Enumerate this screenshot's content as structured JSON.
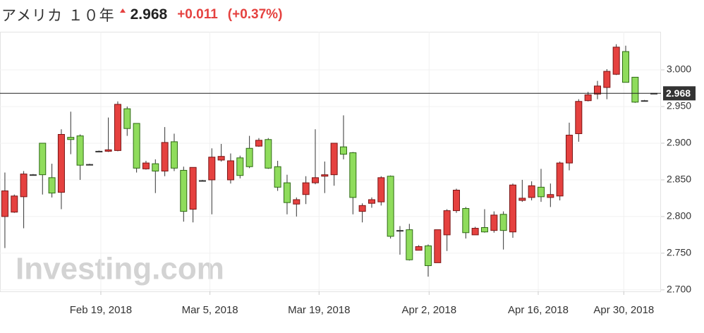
{
  "chart_data": {
    "type": "candlestick",
    "title": "アメリカ １０年",
    "last_price": 2.968,
    "change": "+0.011",
    "change_pct": "(+0.37%)",
    "watermark": "Investing.com",
    "up_color": "#8fdc5c",
    "down_color": "#e5413f",
    "x": [
      0,
      1,
      2,
      3,
      4,
      5,
      6,
      7,
      8,
      9,
      10,
      11,
      12,
      13,
      14,
      15,
      16,
      17,
      18,
      19,
      20,
      21,
      22,
      23,
      24,
      25,
      26,
      27,
      28,
      29,
      30,
      31,
      32,
      33,
      34,
      35,
      36,
      37,
      38,
      39,
      40,
      41,
      42,
      43,
      44,
      45,
      46,
      47,
      48,
      49,
      50,
      51,
      52,
      53,
      54,
      55,
      56,
      57,
      58,
      59,
      60,
      61,
      62,
      63,
      64,
      65,
      66,
      67,
      68,
      69
    ],
    "open": [
      2.835,
      2.828,
      2.858,
      2.857,
      2.857,
      2.832,
      2.912,
      2.905,
      2.87,
      2.871,
      2.889,
      2.891,
      2.953,
      2.92,
      2.866,
      2.873,
      2.862,
      2.901,
      2.866,
      2.807,
      2.867,
      2.849,
      2.881,
      2.882,
      2.876,
      2.856,
      2.868,
      2.904,
      2.866,
      2.84,
      2.819,
      2.823,
      2.846,
      2.853,
      2.857,
      2.9,
      2.885,
      2.826,
      2.815,
      2.823,
      2.853,
      2.773,
      2.781,
      2.741,
      2.759,
      2.733,
      2.782,
      2.808,
      2.836,
      2.778,
      2.784,
      2.779,
      2.802,
      2.781,
      2.843,
      2.825,
      2.842,
      2.827,
      2.83,
      2.873,
      2.911,
      2.957,
      2.966,
      2.978,
      2.998,
      3.031,
      2.983,
      2.956,
      2.958,
      2.968
    ],
    "high": [
      2.86,
      2.83,
      2.862,
      2.858,
      2.9,
      2.872,
      2.919,
      2.943,
      2.912,
      2.872,
      2.89,
      2.935,
      2.957,
      2.95,
      2.927,
      2.876,
      2.878,
      2.922,
      2.913,
      2.868,
      2.867,
      2.85,
      2.893,
      2.899,
      2.886,
      2.883,
      2.91,
      2.907,
      2.907,
      2.876,
      2.857,
      2.826,
      2.855,
      2.919,
      2.875,
      2.9,
      2.938,
      2.888,
      2.818,
      2.826,
      2.855,
      2.856,
      2.787,
      2.79,
      2.761,
      2.762,
      2.782,
      2.81,
      2.838,
      2.813,
      2.786,
      2.81,
      2.807,
      2.807,
      2.845,
      2.85,
      2.848,
      2.865,
      2.845,
      2.875,
      2.928,
      2.96,
      2.97,
      2.985,
      3.001,
      3.035,
      3.033,
      2.99,
      2.959,
      2.968
    ],
    "low": [
      2.757,
      2.805,
      2.784,
      2.856,
      2.83,
      2.826,
      2.81,
      2.885,
      2.85,
      2.87,
      2.888,
      2.888,
      2.889,
      2.91,
      2.86,
      2.864,
      2.832,
      2.855,
      2.862,
      2.793,
      2.792,
      2.848,
      2.803,
      2.875,
      2.845,
      2.852,
      2.866,
      2.895,
      2.865,
      2.835,
      2.803,
      2.8,
      2.817,
      2.844,
      2.832,
      2.842,
      2.878,
      2.803,
      2.792,
      2.812,
      2.815,
      2.77,
      2.748,
      2.74,
      2.754,
      2.718,
      2.737,
      2.753,
      2.805,
      2.77,
      2.775,
      2.778,
      2.778,
      2.755,
      2.771,
      2.82,
      2.822,
      2.82,
      2.813,
      2.822,
      2.863,
      2.902,
      2.957,
      2.96,
      2.96,
      2.993,
      2.983,
      2.955,
      2.957,
      2.968
    ],
    "close": [
      2.8,
      2.806,
      2.827,
      2.857,
      2.9,
      2.853,
      2.833,
      2.908,
      2.91,
      2.871,
      2.889,
      2.889,
      2.89,
      2.947,
      2.927,
      2.865,
      2.872,
      2.862,
      2.902,
      2.863,
      2.81,
      2.849,
      2.85,
      2.877,
      2.85,
      2.88,
      2.893,
      2.896,
      2.905,
      2.868,
      2.846,
      2.817,
      2.83,
      2.846,
      2.855,
      2.857,
      2.895,
      2.887,
      2.807,
      2.818,
      2.82,
      2.855,
      2.781,
      2.782,
      2.754,
      2.76,
      2.737,
      2.775,
      2.808,
      2.811,
      2.775,
      2.785,
      2.781,
      2.803,
      2.779,
      2.822,
      2.826,
      2.84,
      2.826,
      2.828,
      2.873,
      2.913,
      2.958,
      2.967,
      2.976,
      2.994,
      3.025,
      2.99,
      2.958,
      2.968
    ],
    "xlim": [
      -0.52,
      69.6
    ],
    "xticks": [
      {
        "value": 10.2,
        "label": "Feb 19, 2018"
      },
      {
        "value": 21.8,
        "label": "Mar 5, 2018"
      },
      {
        "value": 33.4,
        "label": "Mar 19, 2018"
      },
      {
        "value": 45.1,
        "label": "Apr 2, 2018"
      },
      {
        "value": 56.7,
        "label": "Apr 16, 2018"
      },
      {
        "value": 65.8,
        "label": "Apr 30, 2018"
      }
    ],
    "ylim": [
      2.696,
      3.052
    ],
    "yticks": [
      {
        "value": 2.7,
        "label": "2.700"
      },
      {
        "value": 2.75,
        "label": "2.750"
      },
      {
        "value": 2.8,
        "label": "2.800"
      },
      {
        "value": 2.85,
        "label": "2.850"
      },
      {
        "value": 2.9,
        "label": "2.900"
      },
      {
        "value": 2.95,
        "label": "2.950"
      },
      {
        "value": 3.0,
        "label": "3.000"
      }
    ],
    "grid": true
  }
}
